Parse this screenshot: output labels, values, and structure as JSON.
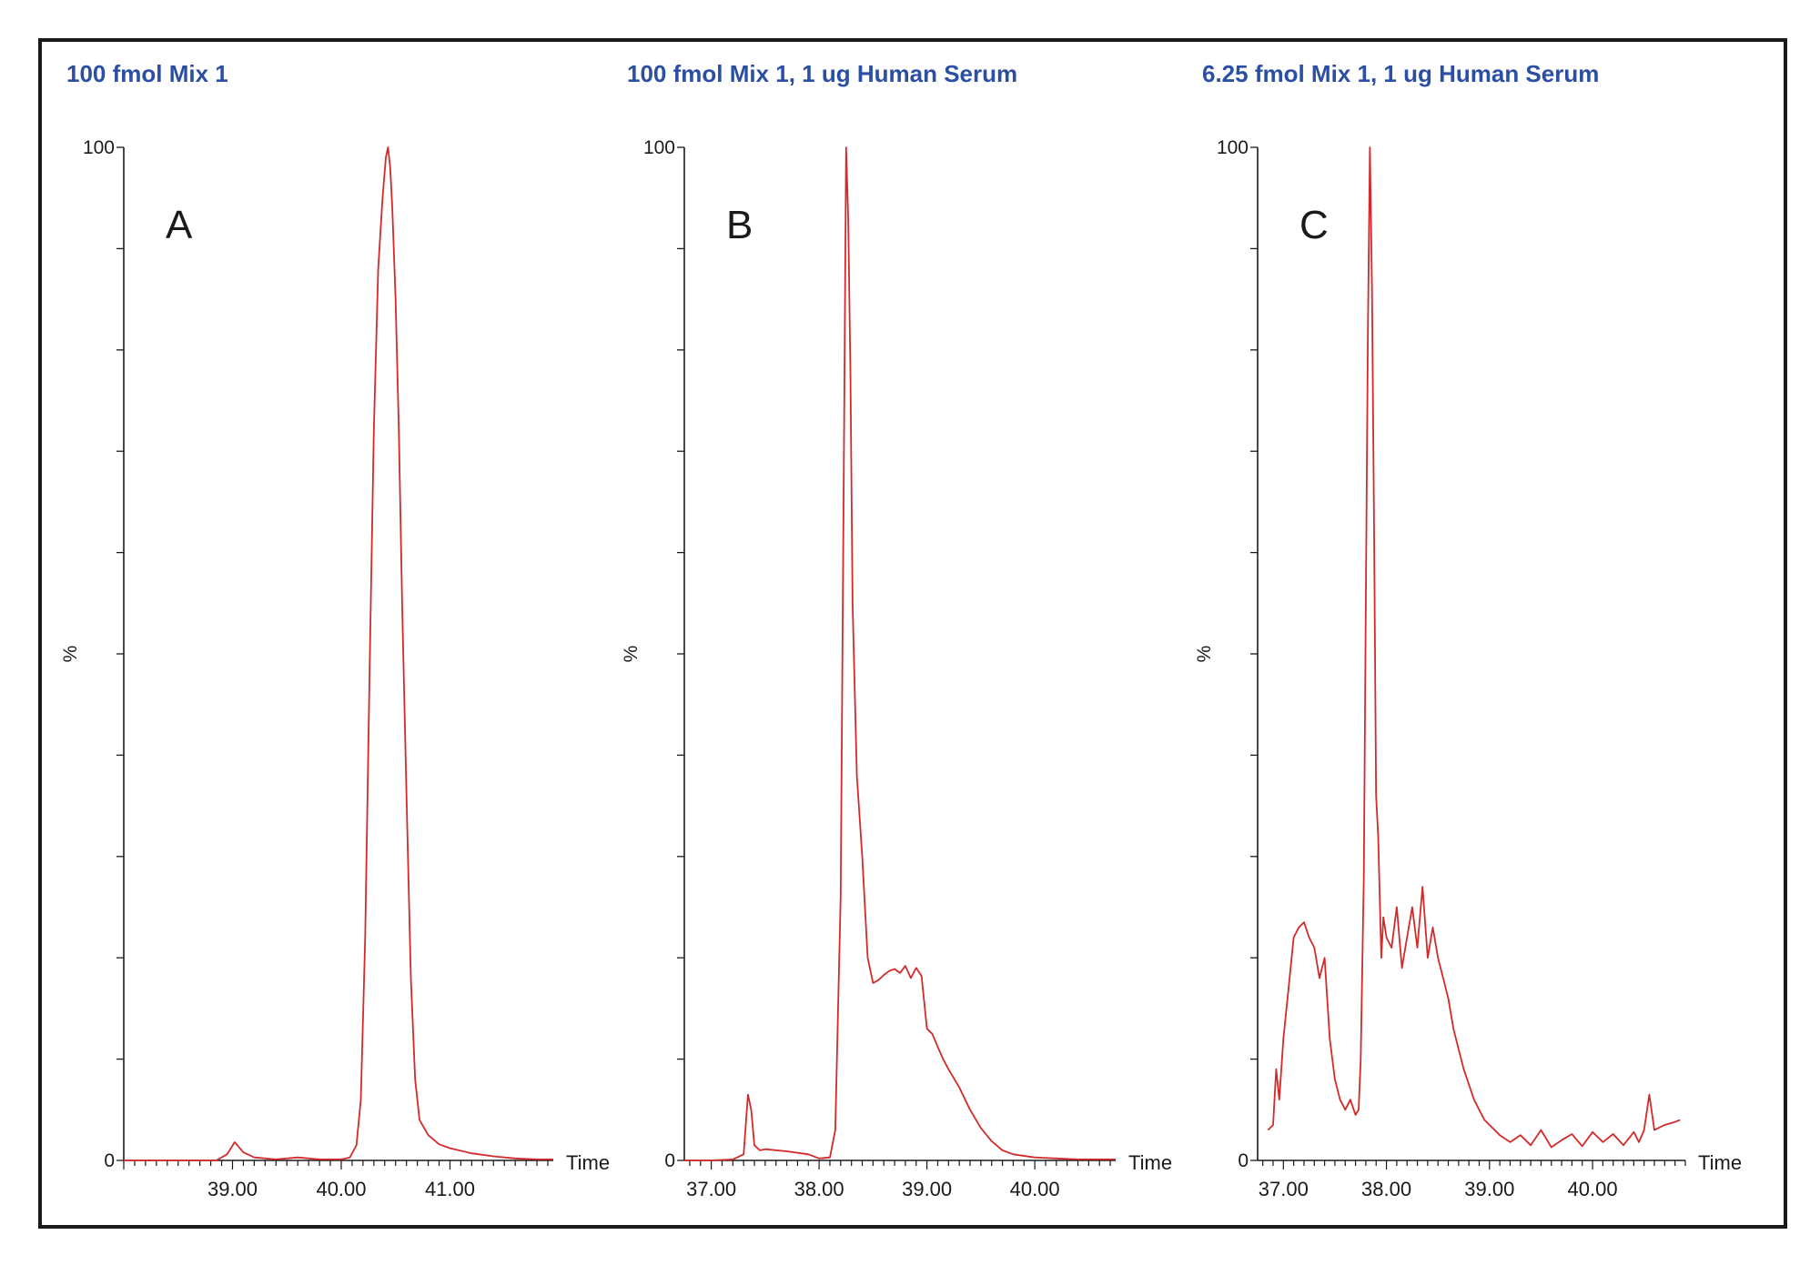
{
  "colors": {
    "trace": "#d42a2a",
    "title": "#2b4fa3",
    "axis": "#1a1a1a",
    "frame": "#1a1a1a"
  },
  "chart_data": [
    {
      "type": "line",
      "title": "100 fmol Mix 1",
      "panel_label": "A",
      "xlabel": "Time",
      "ylabel": "%",
      "xlim": [
        38.0,
        41.95
      ],
      "ylim": [
        0,
        100
      ],
      "x_ticks": [
        "39.00",
        "40.00",
        "41.00"
      ],
      "y_ticks": [
        "0",
        "100"
      ],
      "series": [
        {
          "x": [
            38.0,
            38.5,
            38.85,
            38.95,
            39.02,
            39.1,
            39.2,
            39.4,
            39.6,
            39.8,
            40.0,
            40.08,
            40.14,
            40.18,
            40.22,
            40.26,
            40.3,
            40.34,
            40.38,
            40.41,
            40.43,
            40.45,
            40.47,
            40.5,
            40.53,
            40.56,
            40.6,
            40.64,
            40.68,
            40.72,
            40.8,
            40.9,
            41.0,
            41.2,
            41.4,
            41.6,
            41.8,
            41.95
          ],
          "y": [
            0,
            0,
            0,
            0.6,
            1.8,
            0.8,
            0.3,
            0.1,
            0.3,
            0.1,
            0.1,
            0.3,
            1.5,
            6,
            22,
            48,
            72,
            88,
            95,
            99,
            100,
            98,
            94,
            85,
            72,
            55,
            36,
            18,
            8,
            4,
            2.5,
            1.6,
            1.2,
            0.7,
            0.4,
            0.2,
            0.1,
            0.1
          ]
        }
      ]
    },
    {
      "type": "line",
      "title": "100 fmol Mix 1, 1 ug Human Serum",
      "panel_label": "B",
      "xlabel": "Time",
      "ylabel": "%",
      "xlim": [
        36.75,
        40.75
      ],
      "ylim": [
        0,
        100
      ],
      "x_ticks": [
        "37.00",
        "38.00",
        "39.00",
        "40.00"
      ],
      "y_ticks": [
        "0",
        "100"
      ],
      "series": [
        {
          "x": [
            36.75,
            37.0,
            37.2,
            37.3,
            37.34,
            37.37,
            37.4,
            37.45,
            37.5,
            37.7,
            37.9,
            38.0,
            38.1,
            38.15,
            38.2,
            38.23,
            38.25,
            38.27,
            38.29,
            38.31,
            38.35,
            38.4,
            38.45,
            38.5,
            38.55,
            38.6,
            38.65,
            38.7,
            38.75,
            38.8,
            38.85,
            38.9,
            38.95,
            39.0,
            39.05,
            39.1,
            39.15,
            39.2,
            39.3,
            39.4,
            39.5,
            39.6,
            39.7,
            39.8,
            40.0,
            40.2,
            40.4,
            40.6,
            40.75
          ],
          "y": [
            0,
            0,
            0.1,
            0.6,
            6.5,
            5,
            1.5,
            1.0,
            1.1,
            0.9,
            0.6,
            0.2,
            0.3,
            3,
            26,
            70,
            100,
            93,
            78,
            55,
            38,
            30,
            20,
            17.5,
            17.8,
            18.3,
            18.7,
            18.9,
            18.5,
            19.2,
            18.0,
            19.0,
            18.2,
            13,
            12.5,
            11.2,
            10.0,
            9.0,
            7.2,
            5.0,
            3.2,
            1.9,
            1.0,
            0.6,
            0.3,
            0.2,
            0.1,
            0.1,
            0.1
          ]
        }
      ]
    },
    {
      "type": "line",
      "title": "6.25 fmol Mix 1, 1 ug Human Serum",
      "panel_label": "C",
      "xlabel": "Time",
      "ylabel": "%",
      "xlim": [
        36.75,
        40.9
      ],
      "ylim": [
        0,
        100
      ],
      "x_ticks": [
        "37.00",
        "38.00",
        "39.00",
        "40.00"
      ],
      "y_ticks": [
        "0",
        "100"
      ],
      "series": [
        {
          "x": [
            36.85,
            36.9,
            36.93,
            36.96,
            37.0,
            37.05,
            37.1,
            37.15,
            37.2,
            37.25,
            37.3,
            37.35,
            37.4,
            37.45,
            37.5,
            37.55,
            37.6,
            37.65,
            37.7,
            37.73,
            37.75,
            37.78,
            37.8,
            37.82,
            37.84,
            37.86,
            37.88,
            37.9,
            37.92,
            37.95,
            37.97,
            38.0,
            38.05,
            38.1,
            38.15,
            38.2,
            38.25,
            38.3,
            38.35,
            38.4,
            38.45,
            38.5,
            38.55,
            38.6,
            38.65,
            38.7,
            38.75,
            38.8,
            38.85,
            38.9,
            38.95,
            39.0,
            39.1,
            39.2,
            39.3,
            39.4,
            39.5,
            39.6,
            39.7,
            39.8,
            39.9,
            40.0,
            40.1,
            40.2,
            40.3,
            40.4,
            40.45,
            40.5,
            40.55,
            40.6,
            40.7,
            40.8,
            40.85
          ],
          "y": [
            3,
            3.5,
            9,
            6,
            12,
            17,
            22,
            23,
            23.5,
            22,
            21,
            18,
            20,
            12,
            8,
            6,
            5,
            6,
            4.5,
            5,
            10,
            28,
            55,
            82,
            100,
            86,
            62,
            36,
            32,
            20,
            24,
            22,
            21,
            25,
            19,
            22,
            25,
            21,
            27,
            20,
            23,
            20,
            18,
            16,
            13,
            11,
            9,
            7.5,
            6,
            5,
            4,
            3.5,
            2.5,
            1.8,
            2.5,
            1.5,
            3,
            1.3,
            2,
            2.6,
            1.4,
            2.8,
            1.8,
            2.6,
            1.5,
            2.8,
            1.8,
            3,
            6.5,
            3,
            3.5,
            3.8,
            4
          ]
        }
      ]
    }
  ]
}
